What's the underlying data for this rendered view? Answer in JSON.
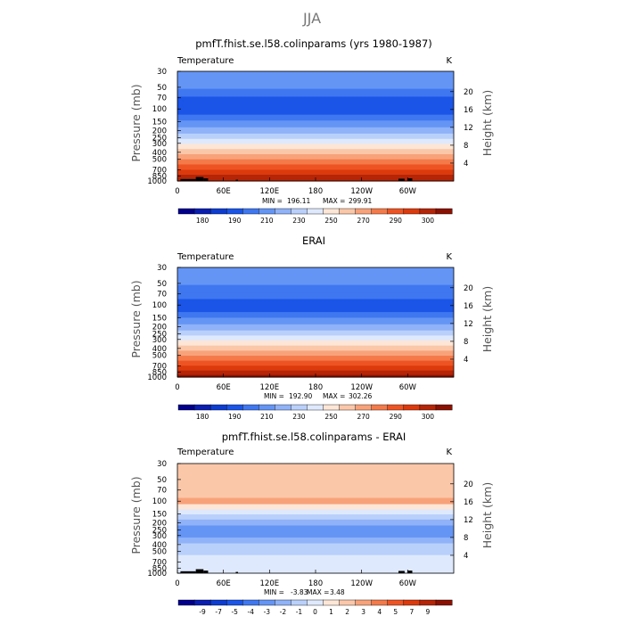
{
  "figure_title": "JJA",
  "colors": {
    "abs_levels": [
      "#00008b",
      "#0a1fb0",
      "#0d3cd0",
      "#1a55e8",
      "#3f77f0",
      "#6495f5",
      "#8fb2f8",
      "#b9d0fb",
      "#dfe9fd",
      "#fde6d6",
      "#fbc7a9",
      "#f8a27a",
      "#f47a4a",
      "#ee5423",
      "#dc3a0d",
      "#b52507",
      "#8a1102"
    ],
    "diff_levels": [
      "#00008b",
      "#0a1fb0",
      "#0d3cd0",
      "#1a55e8",
      "#3f77f0",
      "#6495f5",
      "#8fb2f8",
      "#b9d0fb",
      "#dfe9fd",
      "#fde6d6",
      "#fbc7a9",
      "#f8a27a",
      "#f47a4a",
      "#ee5423",
      "#dc3a0d",
      "#b52507",
      "#8a1102"
    ],
    "topo": "#000000"
  },
  "chart_data": [
    {
      "type": "heatmap",
      "title": "pmfT.fhist.se.l58.colinparams (yrs 1980-1987)",
      "left_label": "Temperature",
      "unit": "K",
      "ylabel": "Pressure (mb)",
      "y2label": "Height (km)",
      "x_ticks": [
        "0",
        "60E",
        "120E",
        "180",
        "120W",
        "60W"
      ],
      "x_tick_lon": [
        0,
        60,
        120,
        180,
        240,
        300
      ],
      "xlim": [
        0,
        360
      ],
      "y_ticks": [
        "30",
        "50",
        "70",
        "100",
        "150",
        "200",
        "250",
        "300",
        "400",
        "500",
        "700",
        "850",
        "1000"
      ],
      "y_tick_p": [
        30,
        50,
        70,
        100,
        150,
        200,
        250,
        300,
        400,
        500,
        700,
        850,
        1000
      ],
      "ylim_p": [
        1000,
        30
      ],
      "y2_ticks": [
        "20",
        "16",
        "12",
        "8",
        "4"
      ],
      "y2_tick_km": [
        20,
        16,
        12,
        8,
        4
      ],
      "min_label": "MIN =",
      "min_value": "196.11",
      "max_label": "MAX =",
      "max_value": "299.91",
      "colorbar_labels": [
        "180",
        "190",
        "210",
        "230",
        "250",
        "270",
        "290",
        "300"
      ],
      "colorbar_label_slots": [
        1,
        3,
        5,
        7,
        9,
        11,
        13,
        15
      ],
      "layers": [
        {
          "p": 30,
          "level": 5
        },
        {
          "p": 45,
          "level": 5
        },
        {
          "p": 60,
          "level": 4
        },
        {
          "p": 75,
          "level": 3
        },
        {
          "p": 90,
          "level": 3
        },
        {
          "p": 110,
          "level": 3
        },
        {
          "p": 130,
          "level": 4
        },
        {
          "p": 160,
          "level": 5
        },
        {
          "p": 200,
          "level": 6
        },
        {
          "p": 240,
          "level": 7
        },
        {
          "p": 280,
          "level": 8
        },
        {
          "p": 330,
          "level": 9
        },
        {
          "p": 390,
          "level": 10
        },
        {
          "p": 460,
          "level": 11
        },
        {
          "p": 540,
          "level": 12
        },
        {
          "p": 640,
          "level": 13
        },
        {
          "p": 760,
          "level": 14
        },
        {
          "p": 880,
          "level": 15
        },
        {
          "p": 1000,
          "level": 15
        }
      ],
      "topo": true
    },
    {
      "type": "heatmap",
      "title": "ERAI",
      "left_label": "Temperature",
      "unit": "K",
      "ylabel": "Pressure (mb)",
      "y2label": "Height (km)",
      "x_ticks": [
        "0",
        "60E",
        "120E",
        "180",
        "120W",
        "60W"
      ],
      "x_tick_lon": [
        0,
        60,
        120,
        180,
        240,
        300
      ],
      "xlim": [
        0,
        360
      ],
      "y_ticks": [
        "30",
        "50",
        "70",
        "100",
        "150",
        "200",
        "250",
        "300",
        "400",
        "500",
        "700",
        "850",
        "1000"
      ],
      "y_tick_p": [
        30,
        50,
        70,
        100,
        150,
        200,
        250,
        300,
        400,
        500,
        700,
        850,
        1000
      ],
      "ylim_p": [
        1000,
        30
      ],
      "y2_ticks": [
        "20",
        "16",
        "12",
        "8",
        "4"
      ],
      "y2_tick_km": [
        20,
        16,
        12,
        8,
        4
      ],
      "min_label": "MIN =",
      "min_value": "192.90",
      "max_label": "MAX =",
      "max_value": "302.26",
      "colorbar_labels": [
        "180",
        "190",
        "210",
        "230",
        "250",
        "270",
        "290",
        "300"
      ],
      "colorbar_label_slots": [
        1,
        3,
        5,
        7,
        9,
        11,
        13,
        15
      ],
      "layers": [
        {
          "p": 30,
          "level": 5
        },
        {
          "p": 45,
          "level": 5
        },
        {
          "p": 60,
          "level": 4
        },
        {
          "p": 75,
          "level": 4
        },
        {
          "p": 90,
          "level": 3
        },
        {
          "p": 115,
          "level": 3
        },
        {
          "p": 135,
          "level": 4
        },
        {
          "p": 165,
          "level": 5
        },
        {
          "p": 205,
          "level": 6
        },
        {
          "p": 245,
          "level": 7
        },
        {
          "p": 285,
          "level": 8
        },
        {
          "p": 335,
          "level": 9
        },
        {
          "p": 395,
          "level": 10
        },
        {
          "p": 465,
          "level": 11
        },
        {
          "p": 545,
          "level": 12
        },
        {
          "p": 640,
          "level": 13
        },
        {
          "p": 750,
          "level": 14
        },
        {
          "p": 870,
          "level": 15
        },
        {
          "p": 1000,
          "level": 16
        }
      ],
      "topo": false
    },
    {
      "type": "heatmap",
      "title": "pmfT.fhist.se.l58.colinparams - ERAI",
      "left_label": "Temperature",
      "unit": "K",
      "ylabel": "Pressure (mb)",
      "y2label": "Height (km)",
      "x_ticks": [
        "0",
        "60E",
        "120E",
        "180",
        "120W",
        "60W"
      ],
      "x_tick_lon": [
        0,
        60,
        120,
        180,
        240,
        300
      ],
      "xlim": [
        0,
        360
      ],
      "y_ticks": [
        "30",
        "50",
        "70",
        "100",
        "150",
        "200",
        "250",
        "300",
        "400",
        "500",
        "700",
        "850",
        "1000"
      ],
      "y_tick_p": [
        30,
        50,
        70,
        100,
        150,
        200,
        250,
        300,
        400,
        500,
        700,
        850,
        1000
      ],
      "ylim_p": [
        1000,
        30
      ],
      "y2_ticks": [
        "20",
        "16",
        "12",
        "8",
        "4"
      ],
      "y2_tick_km": [
        20,
        16,
        12,
        8,
        4
      ],
      "min_label": "MIN =",
      "min_value": "-3.83",
      "max_label": "MAX =",
      "max_value": "3.48",
      "colorbar_labels": [
        "-9",
        "-7",
        "-5",
        "-4",
        "-3",
        "-2",
        "-1",
        "0",
        "1",
        "2",
        "3",
        "4",
        "5",
        "7",
        "9"
      ],
      "colorbar_label_slots": [
        1,
        2,
        3,
        4,
        5,
        6,
        7,
        8,
        9,
        10,
        11,
        12,
        13,
        14,
        15
      ],
      "layers": [
        {
          "p": 30,
          "level": 10
        },
        {
          "p": 40,
          "level": 10
        },
        {
          "p": 55,
          "level": 10
        },
        {
          "p": 80,
          "level": 10
        },
        {
          "p": 100,
          "level": 11
        },
        {
          "p": 120,
          "level": 9
        },
        {
          "p": 140,
          "level": 8
        },
        {
          "p": 165,
          "level": 7
        },
        {
          "p": 195,
          "level": 6
        },
        {
          "p": 240,
          "level": 5
        },
        {
          "p": 290,
          "level": 5
        },
        {
          "p": 350,
          "level": 6
        },
        {
          "p": 420,
          "level": 7
        },
        {
          "p": 500,
          "level": 7
        },
        {
          "p": 620,
          "level": 8
        },
        {
          "p": 760,
          "level": 8
        },
        {
          "p": 900,
          "level": 8
        },
        {
          "p": 1000,
          "level": 8
        }
      ],
      "topo": true
    }
  ]
}
